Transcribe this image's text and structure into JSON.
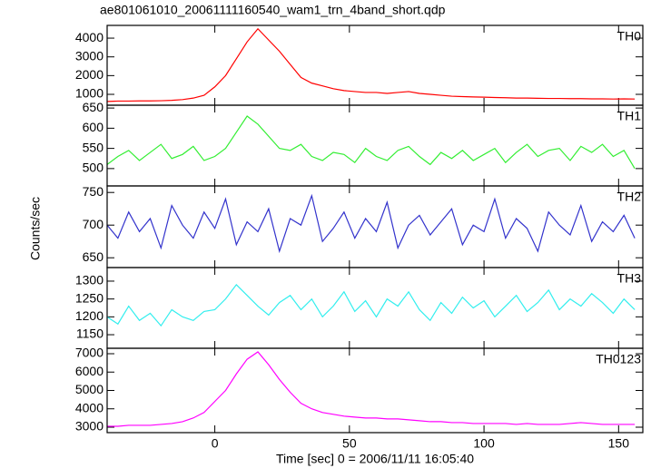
{
  "title": "ae801061010_20061111160540_wam1_trn_4band_short.qdp",
  "xlabel": "Time [sec] 0 = 2006/11/11 16:05:40",
  "ylabel": "Counts/sec",
  "chart_data": [
    {
      "type": "line",
      "xlim": [
        -40,
        159
      ],
      "xticks": [
        0,
        50,
        100,
        150
      ],
      "ylim": [
        420,
        4680
      ],
      "yticks": [
        1000,
        2000,
        3000,
        4000
      ],
      "x": [
        -40,
        -36,
        -32,
        -28,
        -24,
        -20,
        -16,
        -12,
        -8,
        -4,
        0,
        4,
        8,
        12,
        16,
        20,
        24,
        28,
        32,
        36,
        40,
        44,
        48,
        52,
        56,
        60,
        64,
        68,
        72,
        76,
        80,
        84,
        88,
        92,
        96,
        100,
        104,
        108,
        112,
        116,
        120,
        124,
        128,
        132,
        136,
        140,
        144,
        148,
        152,
        156
      ],
      "series": [
        {
          "name": "TH0",
          "color": "#ff0000",
          "values": [
            620,
            640,
            640,
            650,
            650,
            660,
            680,
            720,
            800,
            950,
            1400,
            2000,
            2900,
            3800,
            4500,
            3900,
            3300,
            2600,
            1900,
            1600,
            1450,
            1300,
            1200,
            1150,
            1100,
            1100,
            1050,
            1100,
            1150,
            1050,
            1000,
            950,
            900,
            880,
            860,
            850,
            830,
            820,
            800,
            800,
            790,
            780,
            780,
            770,
            770,
            760,
            760,
            750,
            760,
            750
          ]
        }
      ]
    },
    {
      "type": "line",
      "xlim": [
        -40,
        159
      ],
      "xticks": [
        0,
        50,
        100,
        150
      ],
      "ylim": [
        457,
        657
      ],
      "yticks": [
        500,
        550,
        600,
        650
      ],
      "x": [
        -40,
        -36,
        -32,
        -28,
        -24,
        -20,
        -16,
        -12,
        -8,
        -4,
        0,
        4,
        8,
        12,
        16,
        20,
        24,
        28,
        32,
        36,
        40,
        44,
        48,
        52,
        56,
        60,
        64,
        68,
        72,
        76,
        80,
        84,
        88,
        92,
        96,
        100,
        104,
        108,
        112,
        116,
        120,
        124,
        128,
        132,
        136,
        140,
        144,
        148,
        152,
        156
      ],
      "series": [
        {
          "name": "TH1",
          "color": "#33ee33",
          "values": [
            510,
            530,
            545,
            520,
            540,
            560,
            525,
            535,
            555,
            520,
            530,
            550,
            590,
            630,
            610,
            580,
            550,
            545,
            560,
            530,
            520,
            540,
            535,
            515,
            550,
            530,
            520,
            545,
            555,
            530,
            510,
            540,
            525,
            545,
            520,
            535,
            550,
            515,
            540,
            560,
            530,
            545,
            550,
            520,
            555,
            540,
            560,
            530,
            545,
            500
          ]
        }
      ]
    },
    {
      "type": "line",
      "xlim": [
        -40,
        159
      ],
      "xticks": [
        0,
        50,
        100,
        150
      ],
      "ylim": [
        635,
        760
      ],
      "yticks": [
        650,
        700,
        750
      ],
      "x": [
        -40,
        -36,
        -32,
        -28,
        -24,
        -20,
        -16,
        -12,
        -8,
        -4,
        0,
        4,
        8,
        12,
        16,
        20,
        24,
        28,
        32,
        36,
        40,
        44,
        48,
        52,
        56,
        60,
        64,
        68,
        72,
        76,
        80,
        84,
        88,
        92,
        96,
        100,
        104,
        108,
        112,
        116,
        120,
        124,
        128,
        132,
        136,
        140,
        144,
        148,
        152,
        156
      ],
      "series": [
        {
          "name": "TH2",
          "color": "#3333cc",
          "values": [
            700,
            680,
            720,
            690,
            710,
            665,
            730,
            700,
            680,
            720,
            695,
            740,
            670,
            705,
            690,
            725,
            660,
            710,
            700,
            745,
            675,
            695,
            720,
            680,
            710,
            690,
            735,
            665,
            700,
            715,
            685,
            705,
            725,
            670,
            700,
            690,
            740,
            680,
            710,
            695,
            660,
            720,
            700,
            685,
            730,
            675,
            705,
            690,
            715,
            680
          ]
        }
      ]
    },
    {
      "type": "line",
      "xlim": [
        -40,
        159
      ],
      "xticks": [
        0,
        50,
        100,
        150
      ],
      "ylim": [
        1112,
        1338
      ],
      "yticks": [
        1150,
        1200,
        1250,
        1300
      ],
      "x": [
        -40,
        -36,
        -32,
        -28,
        -24,
        -20,
        -16,
        -12,
        -8,
        -4,
        0,
        4,
        8,
        12,
        16,
        20,
        24,
        28,
        32,
        36,
        40,
        44,
        48,
        52,
        56,
        60,
        64,
        68,
        72,
        76,
        80,
        84,
        88,
        92,
        96,
        100,
        104,
        108,
        112,
        116,
        120,
        124,
        128,
        132,
        136,
        140,
        144,
        148,
        152,
        156
      ],
      "series": [
        {
          "name": "TH3",
          "color": "#33eeee",
          "values": [
            1200,
            1180,
            1230,
            1190,
            1210,
            1175,
            1220,
            1200,
            1190,
            1215,
            1220,
            1250,
            1290,
            1260,
            1230,
            1205,
            1240,
            1260,
            1220,
            1250,
            1200,
            1230,
            1270,
            1215,
            1245,
            1200,
            1250,
            1230,
            1270,
            1220,
            1190,
            1240,
            1210,
            1255,
            1225,
            1245,
            1200,
            1230,
            1260,
            1215,
            1240,
            1275,
            1220,
            1250,
            1230,
            1265,
            1240,
            1210,
            1250,
            1220
          ]
        }
      ]
    },
    {
      "type": "line",
      "xlim": [
        -40,
        159
      ],
      "xticks": [
        0,
        50,
        100,
        150
      ],
      "ylim": [
        2703,
        7296
      ],
      "yticks": [
        3000,
        4000,
        5000,
        6000,
        7000
      ],
      "x": [
        -40,
        -36,
        -32,
        -28,
        -24,
        -20,
        -16,
        -12,
        -8,
        -4,
        0,
        4,
        8,
        12,
        16,
        20,
        24,
        28,
        32,
        36,
        40,
        44,
        48,
        52,
        56,
        60,
        64,
        68,
        72,
        76,
        80,
        84,
        88,
        92,
        96,
        100,
        104,
        108,
        112,
        116,
        120,
        124,
        128,
        132,
        136,
        140,
        144,
        148,
        152,
        156
      ],
      "series": [
        {
          "name": "TH0123",
          "color": "#ff00ff",
          "values": [
            3050,
            3050,
            3100,
            3100,
            3100,
            3150,
            3200,
            3300,
            3500,
            3800,
            4400,
            5000,
            5900,
            6700,
            7100,
            6400,
            5600,
            4900,
            4300,
            4000,
            3800,
            3700,
            3600,
            3550,
            3500,
            3500,
            3450,
            3450,
            3400,
            3350,
            3300,
            3300,
            3250,
            3250,
            3200,
            3200,
            3200,
            3200,
            3150,
            3200,
            3150,
            3150,
            3150,
            3200,
            3250,
            3200,
            3150,
            3150,
            3150,
            3150
          ]
        }
      ]
    }
  ]
}
